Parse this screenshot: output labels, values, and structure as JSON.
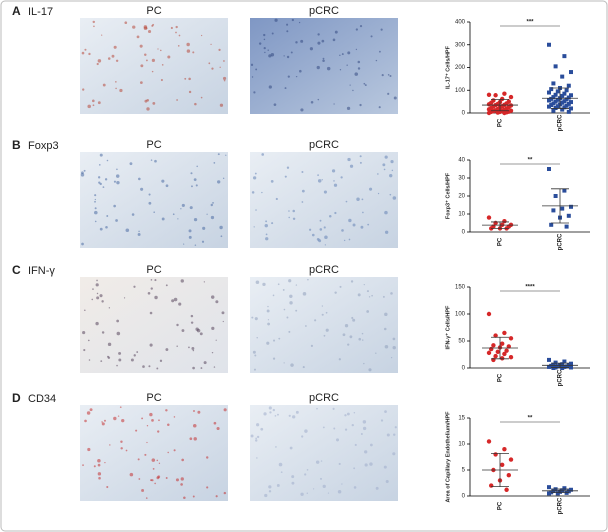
{
  "panels": [
    {
      "letter": "A",
      "marker": "IL-17",
      "images": [
        "PC",
        "pCRC"
      ]
    },
    {
      "letter": "B",
      "marker": "Foxp3",
      "images": [
        "PC",
        "pCRC"
      ]
    },
    {
      "letter": "C",
      "marker": "IFN-γ",
      "images": [
        "PC",
        "pCRC"
      ]
    },
    {
      "letter": "D",
      "marker": "CD34",
      "images": [
        "PC",
        "pCRC"
      ]
    }
  ],
  "chart_data": [
    {
      "type": "dot",
      "ylabel": "IL-17⁺ Cells/HPF",
      "categories": [
        "PC",
        "pCRC"
      ],
      "significance": "***",
      "ylim": [
        0,
        400
      ],
      "yticks": [
        0,
        100,
        200,
        300,
        400
      ],
      "groups": [
        {
          "color": "#d62728",
          "marker": "circle",
          "values": [
            80,
            85,
            78,
            70,
            62,
            55,
            50,
            48,
            45,
            42,
            40,
            38,
            36,
            35,
            33,
            30,
            28,
            26,
            25,
            22,
            20,
            18,
            16,
            15,
            12,
            10,
            10,
            8,
            6,
            5,
            5,
            3,
            2,
            0,
            0
          ],
          "mean": 35,
          "sd": 25
        },
        {
          "color": "#2a4d9b",
          "marker": "square",
          "values": [
            300,
            250,
            205,
            180,
            160,
            130,
            120,
            110,
            105,
            100,
            95,
            90,
            85,
            80,
            78,
            75,
            70,
            68,
            65,
            62,
            60,
            58,
            55,
            52,
            50,
            48,
            45,
            42,
            40,
            38,
            35,
            32,
            30,
            28,
            25,
            22,
            20,
            15,
            10,
            5
          ],
          "mean": 65,
          "sd": 45
        }
      ]
    },
    {
      "type": "dot",
      "ylabel": "Foxp3⁺ Cells/HPF",
      "categories": [
        "PC",
        "pCRC"
      ],
      "significance": "**",
      "ylim": [
        0,
        40
      ],
      "yticks": [
        0,
        10,
        20,
        30,
        40
      ],
      "groups": [
        {
          "color": "#d62728",
          "marker": "circle",
          "values": [
            8,
            6,
            5,
            4,
            4,
            3,
            3,
            2,
            2,
            2
          ],
          "mean": 3.8,
          "sd": 1.8
        },
        {
          "color": "#2a4d9b",
          "marker": "square",
          "values": [
            35,
            23,
            20,
            14,
            13,
            12,
            9,
            8,
            4,
            3
          ],
          "mean": 14.5,
          "sd": 9.5
        }
      ]
    },
    {
      "type": "dot",
      "ylabel": "IFN-γ⁺ Cells/HPF",
      "categories": [
        "PC",
        "pCRC"
      ],
      "significance": "****",
      "ylim": [
        0,
        150
      ],
      "yticks": [
        0,
        50,
        100,
        150
      ],
      "groups": [
        {
          "color": "#d62728",
          "marker": "circle",
          "values": [
            100,
            65,
            60,
            55,
            45,
            42,
            40,
            38,
            35,
            32,
            30,
            28,
            26,
            22,
            20,
            18,
            15
          ],
          "mean": 37,
          "sd": 20
        },
        {
          "color": "#2a4d9b",
          "marker": "square",
          "values": [
            15,
            12,
            10,
            8,
            7,
            6,
            5,
            5,
            4,
            3,
            3,
            2,
            2,
            1,
            1,
            0,
            0
          ],
          "mean": 5,
          "sd": 4
        }
      ]
    },
    {
      "type": "dot",
      "ylabel": "Area of Capillary Endothelium/HPF",
      "categories": [
        "PC",
        "pCRC"
      ],
      "significance": "**",
      "ylim": [
        0,
        15
      ],
      "yticks": [
        0,
        5,
        10,
        15
      ],
      "groups": [
        {
          "color": "#d62728",
          "marker": "circle",
          "values": [
            10.5,
            9,
            8,
            7,
            6,
            5,
            4,
            3,
            2,
            1.2
          ],
          "mean": 5,
          "sd": 3.2
        },
        {
          "color": "#2a4d9b",
          "marker": "square",
          "values": [
            1.7,
            1.5,
            1.3,
            1.2,
            1.1,
            1,
            0.9,
            0.8,
            0.7,
            0.6,
            0.5,
            0.5
          ],
          "mean": 1,
          "sd": 0.35
        }
      ]
    }
  ]
}
